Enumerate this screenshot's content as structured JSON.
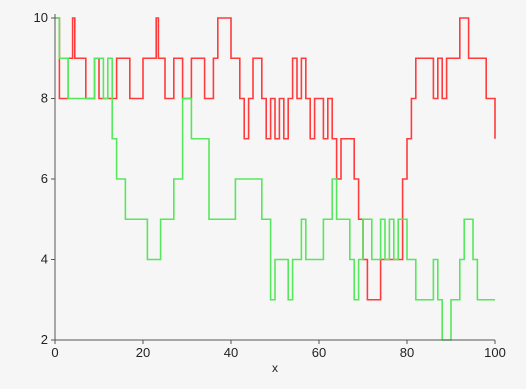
{
  "chart_data": {
    "type": "line",
    "step": true,
    "title": "",
    "xlabel": "x",
    "ylabel": "",
    "xlim": [
      0,
      100
    ],
    "ylim": [
      2,
      10
    ],
    "x_ticks": [
      0,
      20,
      40,
      60,
      80,
      100
    ],
    "y_ticks": [
      2,
      4,
      6,
      8,
      10
    ],
    "x_tick_labels": [
      "0",
      "20",
      "40",
      "60",
      "80",
      "100"
    ],
    "y_tick_labels": [
      "2",
      "4",
      "6",
      "8",
      "10"
    ],
    "grid": false,
    "legend": "none",
    "series": [
      {
        "color": "#ff3b3b",
        "points": [
          [
            0,
            10
          ],
          [
            1,
            8
          ],
          [
            3,
            9
          ],
          [
            4,
            10
          ],
          [
            4.5,
            9
          ],
          [
            7,
            8
          ],
          [
            9,
            9
          ],
          [
            10,
            8
          ],
          [
            14,
            9
          ],
          [
            17,
            8
          ],
          [
            20,
            9
          ],
          [
            23,
            10
          ],
          [
            23.5,
            9
          ],
          [
            25,
            8
          ],
          [
            27,
            9
          ],
          [
            29,
            8
          ],
          [
            31,
            9
          ],
          [
            34,
            8
          ],
          [
            36,
            9
          ],
          [
            37,
            10
          ],
          [
            40,
            9
          ],
          [
            42,
            8
          ],
          [
            43,
            7
          ],
          [
            44,
            8
          ],
          [
            45,
            9
          ],
          [
            47,
            8
          ],
          [
            48,
            7
          ],
          [
            49,
            8
          ],
          [
            50,
            7
          ],
          [
            51,
            8
          ],
          [
            52,
            7
          ],
          [
            53,
            8
          ],
          [
            54,
            9
          ],
          [
            55,
            8
          ],
          [
            56,
            9
          ],
          [
            57,
            8
          ],
          [
            58,
            7
          ],
          [
            59,
            8
          ],
          [
            61,
            7
          ],
          [
            62,
            8
          ],
          [
            63,
            7
          ],
          [
            64,
            6
          ],
          [
            65,
            7
          ],
          [
            68,
            6
          ],
          [
            69,
            5
          ],
          [
            70,
            4
          ],
          [
            71,
            3
          ],
          [
            74,
            4
          ],
          [
            79,
            6
          ],
          [
            80,
            7
          ],
          [
            81,
            8
          ],
          [
            82,
            9
          ],
          [
            86,
            8
          ],
          [
            87,
            9
          ],
          [
            88,
            8
          ],
          [
            89,
            9
          ],
          [
            92,
            10
          ],
          [
            94,
            9
          ],
          [
            98,
            8
          ],
          [
            100,
            7
          ]
        ]
      },
      {
        "color": "#56e85c",
        "points": [
          [
            0,
            10
          ],
          [
            1,
            9
          ],
          [
            3,
            8
          ],
          [
            9,
            9
          ],
          [
            11,
            8
          ],
          [
            12,
            9
          ],
          [
            13,
            7
          ],
          [
            14,
            6
          ],
          [
            16,
            5
          ],
          [
            21,
            4
          ],
          [
            24,
            5
          ],
          [
            27,
            6
          ],
          [
            29,
            8
          ],
          [
            31,
            7
          ],
          [
            35,
            5
          ],
          [
            41,
            6
          ],
          [
            47,
            5
          ],
          [
            49,
            3
          ],
          [
            50,
            4
          ],
          [
            53,
            3
          ],
          [
            54,
            4
          ],
          [
            56,
            5
          ],
          [
            57,
            4
          ],
          [
            61,
            5
          ],
          [
            63,
            6
          ],
          [
            64,
            5
          ],
          [
            67,
            4
          ],
          [
            68,
            3
          ],
          [
            69,
            4
          ],
          [
            70,
            5
          ],
          [
            72,
            4
          ],
          [
            74,
            5
          ],
          [
            75,
            4
          ],
          [
            76,
            5
          ],
          [
            77,
            4
          ],
          [
            78,
            5
          ],
          [
            80,
            4
          ],
          [
            82,
            3
          ],
          [
            86,
            4
          ],
          [
            87,
            3
          ],
          [
            88,
            2
          ],
          [
            90,
            3
          ],
          [
            92,
            4
          ],
          [
            93,
            5
          ],
          [
            95,
            4
          ],
          [
            96,
            3
          ],
          [
            100,
            3
          ]
        ]
      }
    ]
  }
}
